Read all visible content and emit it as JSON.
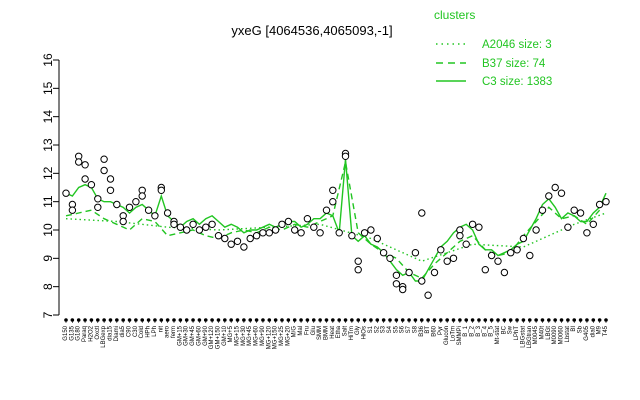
{
  "chart_data": {
    "type": "line",
    "title": "yxeG [4064536,4065093,-1]",
    "xlabel": "",
    "ylabel": "",
    "ylim": [
      7,
      16
    ],
    "yticks": [
      7,
      8,
      9,
      10,
      11,
      12,
      13,
      14,
      15,
      16
    ],
    "grid": false,
    "legend": {
      "title": "clusters",
      "placement": "top-right",
      "entries": [
        {
          "label": "A2046 size: 3",
          "style": "dotted"
        },
        {
          "label": "B37 size: 74",
          "style": "dashed"
        },
        {
          "label": "C3 size: 1383",
          "style": "solid"
        }
      ]
    },
    "colors": {
      "series": "#22c522",
      "points": "#000000",
      "point_fill": "#ffffff"
    },
    "x_tick_labels": [
      "G150",
      "G135",
      "G180",
      "Paraq",
      "H2O2",
      "Oxctl",
      "LBGexp",
      "dia15",
      "Diami",
      "dia5",
      "C90",
      "C30",
      "Cold",
      "HPh",
      "LPh",
      "nit",
      "aero",
      "ferm",
      "GM+15",
      "GM+30",
      "GM+45",
      "GM+60",
      "GM+90",
      "GM+120",
      "GM+150",
      "GM+10",
      "MG+5",
      "MG+15",
      "MG+30",
      "MG+45",
      "MG+60",
      "MG+90",
      "MG+120",
      "MG+150",
      "MG+25",
      "MG+20",
      "M/G",
      "Mal",
      "Fru",
      "Glu",
      "SMM",
      "BMM",
      "Heat",
      "Etha",
      "Salt",
      "HiTm",
      "Gly",
      "HiOs",
      "S1",
      "S2",
      "S3",
      "S4",
      "S5",
      "S6",
      "S7",
      "S8",
      "B36",
      "BT",
      "B60",
      "Pyr",
      "Glucon",
      "LoTm",
      "SMMPi",
      "B_1",
      "B_2",
      "B_3",
      "B_4",
      "B_5",
      "Mt-stat",
      "BC",
      "Sw",
      "LPhT",
      "LBGstat",
      "LBGtran",
      "M0045",
      "M40t",
      "LBGt",
      "M0090",
      "M0060",
      "Lbstat",
      "BI",
      "Sb",
      "G405",
      "dia0",
      "M9",
      "T45"
    ],
    "series": [
      {
        "name": "C3 size: 1383",
        "style": "solid",
        "x": [
          1,
          2,
          3,
          4,
          5,
          6,
          7,
          8,
          9,
          10,
          11,
          12,
          13,
          14,
          15,
          16,
          17,
          18,
          19,
          20,
          21,
          22,
          23,
          24,
          25,
          26,
          27,
          28,
          29,
          30,
          31,
          32,
          33,
          34,
          35,
          36,
          37,
          38,
          39,
          40,
          41,
          42,
          43,
          44,
          45,
          46,
          47,
          48,
          49,
          50,
          51,
          52,
          53,
          54,
          55,
          56,
          57,
          58,
          59,
          60,
          61,
          62,
          63,
          64,
          65,
          66,
          67,
          68,
          69,
          70,
          71,
          72,
          73,
          74,
          75,
          76,
          77,
          78,
          79,
          80,
          81,
          82,
          83,
          84,
          85,
          86
        ],
        "values": [
          11.3,
          11.2,
          11.5,
          11.6,
          11.5,
          11.1,
          11.0,
          11.0,
          10.9,
          10.8,
          10.6,
          10.8,
          10.9,
          10.7,
          10.5,
          11.2,
          10.5,
          10.3,
          10.1,
          10.3,
          10.4,
          10.2,
          10.4,
          10.5,
          10.3,
          10.1,
          10.2,
          10.1,
          9.9,
          10.0,
          10.0,
          10.1,
          10.2,
          10.1,
          10.2,
          10.3,
          10.3,
          10.1,
          10.2,
          10.4,
          10.4,
          10.6,
          10.5,
          9.9,
          12.5,
          9.8,
          9.6,
          9.8,
          9.5,
          9.4,
          9.2,
          8.9,
          8.6,
          8.4,
          8.5,
          8.2,
          8.2,
          8.6,
          9.0,
          9.4,
          9.6,
          9.9,
          10.1,
          10.2,
          10.0,
          9.5,
          9.3,
          9.3,
          9.1,
          9.2,
          9.3,
          9.5,
          9.6,
          10.0,
          10.4,
          10.9,
          11.1,
          10.8,
          10.4,
          10.6,
          10.5,
          10.3,
          10.3,
          10.6,
          10.8,
          11.3
        ]
      },
      {
        "name": "B37 size: 74",
        "style": "dashed",
        "x": [
          1,
          3,
          5,
          7,
          9,
          11,
          13,
          15,
          17,
          19,
          21,
          23,
          25,
          27,
          29,
          31,
          33,
          35,
          37,
          39,
          41,
          43,
          45,
          47,
          49,
          51,
          53,
          55,
          57,
          59,
          61,
          63,
          65,
          67,
          69,
          71,
          73,
          75,
          77,
          79,
          81,
          83,
          85
        ],
        "values": [
          10.5,
          10.6,
          10.7,
          10.4,
          10.2,
          10.0,
          10.4,
          10.3,
          9.8,
          9.9,
          10.0,
          9.8,
          9.7,
          9.9,
          10.0,
          9.9,
          10.1,
          10.0,
          10.2,
          10.1,
          10.3,
          10.5,
          12.4,
          9.9,
          9.5,
          9.2,
          9.0,
          8.5,
          8.3,
          8.8,
          9.2,
          9.6,
          9.8,
          9.3,
          9.1,
          9.2,
          9.8,
          10.3,
          10.8,
          10.4,
          10.5,
          10.2,
          10.7
        ]
      },
      {
        "name": "A2046 size: 3",
        "style": "dotted",
        "x": [
          1,
          9,
          17,
          25,
          33,
          41,
          49,
          57,
          65,
          73,
          81,
          86
        ],
        "values": [
          10.4,
          10.3,
          10.1,
          10.0,
          10.1,
          10.2,
          9.7,
          8.9,
          9.5,
          9.4,
          10.2,
          10.6
        ]
      }
    ],
    "points": [
      {
        "x": 1,
        "y": 11.3
      },
      {
        "x": 2,
        "y": 10.9
      },
      {
        "x": 2,
        "y": 10.7
      },
      {
        "x": 3,
        "y": 12.6
      },
      {
        "x": 3,
        "y": 12.4
      },
      {
        "x": 4,
        "y": 12.3
      },
      {
        "x": 4,
        "y": 11.8
      },
      {
        "x": 5,
        "y": 11.6
      },
      {
        "x": 6,
        "y": 11.1
      },
      {
        "x": 6,
        "y": 10.8
      },
      {
        "x": 7,
        "y": 12.5
      },
      {
        "x": 7,
        "y": 12.1
      },
      {
        "x": 8,
        "y": 11.8
      },
      {
        "x": 8,
        "y": 11.4
      },
      {
        "x": 9,
        "y": 10.9
      },
      {
        "x": 10,
        "y": 10.5
      },
      {
        "x": 10,
        "y": 10.3
      },
      {
        "x": 11,
        "y": 10.8
      },
      {
        "x": 12,
        "y": 11.0
      },
      {
        "x": 13,
        "y": 11.4
      },
      {
        "x": 13,
        "y": 11.2
      },
      {
        "x": 14,
        "y": 10.7
      },
      {
        "x": 15,
        "y": 10.5
      },
      {
        "x": 16,
        "y": 11.5
      },
      {
        "x": 16,
        "y": 11.4
      },
      {
        "x": 17,
        "y": 10.6
      },
      {
        "x": 18,
        "y": 10.3
      },
      {
        "x": 18,
        "y": 10.2
      },
      {
        "x": 19,
        "y": 10.1
      },
      {
        "x": 20,
        "y": 10.0
      },
      {
        "x": 21,
        "y": 10.2
      },
      {
        "x": 22,
        "y": 10.0
      },
      {
        "x": 23,
        "y": 10.1
      },
      {
        "x": 24,
        "y": 10.2
      },
      {
        "x": 25,
        "y": 9.8
      },
      {
        "x": 26,
        "y": 9.7
      },
      {
        "x": 27,
        "y": 9.5
      },
      {
        "x": 28,
        "y": 9.6
      },
      {
        "x": 29,
        "y": 9.4
      },
      {
        "x": 30,
        "y": 9.7
      },
      {
        "x": 31,
        "y": 9.8
      },
      {
        "x": 32,
        "y": 9.9
      },
      {
        "x": 33,
        "y": 9.9
      },
      {
        "x": 34,
        "y": 10.0
      },
      {
        "x": 35,
        "y": 10.2
      },
      {
        "x": 36,
        "y": 10.3
      },
      {
        "x": 37,
        "y": 10.0
      },
      {
        "x": 38,
        "y": 9.9
      },
      {
        "x": 39,
        "y": 10.4
      },
      {
        "x": 40,
        "y": 10.1
      },
      {
        "x": 41,
        "y": 9.9
      },
      {
        "x": 42,
        "y": 10.7
      },
      {
        "x": 43,
        "y": 11.0
      },
      {
        "x": 43,
        "y": 11.4
      },
      {
        "x": 44,
        "y": 9.9
      },
      {
        "x": 45,
        "y": 12.7
      },
      {
        "x": 45,
        "y": 12.6
      },
      {
        "x": 46,
        "y": 9.8
      },
      {
        "x": 47,
        "y": 8.9
      },
      {
        "x": 47,
        "y": 8.6
      },
      {
        "x": 48,
        "y": 9.9
      },
      {
        "x": 49,
        "y": 10.0
      },
      {
        "x": 50,
        "y": 9.7
      },
      {
        "x": 51,
        "y": 9.2
      },
      {
        "x": 52,
        "y": 9.0
      },
      {
        "x": 53,
        "y": 8.4
      },
      {
        "x": 53,
        "y": 8.1
      },
      {
        "x": 54,
        "y": 8.0
      },
      {
        "x": 54,
        "y": 7.9
      },
      {
        "x": 55,
        "y": 8.5
      },
      {
        "x": 56,
        "y": 9.2
      },
      {
        "x": 57,
        "y": 10.6
      },
      {
        "x": 57,
        "y": 8.2
      },
      {
        "x": 58,
        "y": 7.7
      },
      {
        "x": 59,
        "y": 8.5
      },
      {
        "x": 60,
        "y": 9.3
      },
      {
        "x": 61,
        "y": 8.9
      },
      {
        "x": 62,
        "y": 9.0
      },
      {
        "x": 63,
        "y": 10.0
      },
      {
        "x": 63,
        "y": 9.8
      },
      {
        "x": 64,
        "y": 9.5
      },
      {
        "x": 65,
        "y": 10.2
      },
      {
        "x": 66,
        "y": 10.1
      },
      {
        "x": 67,
        "y": 8.6
      },
      {
        "x": 68,
        "y": 9.1
      },
      {
        "x": 69,
        "y": 8.9
      },
      {
        "x": 70,
        "y": 8.5
      },
      {
        "x": 71,
        "y": 9.2
      },
      {
        "x": 72,
        "y": 9.3
      },
      {
        "x": 73,
        "y": 9.7
      },
      {
        "x": 74,
        "y": 9.1
      },
      {
        "x": 75,
        "y": 10.0
      },
      {
        "x": 76,
        "y": 10.7
      },
      {
        "x": 77,
        "y": 11.2
      },
      {
        "x": 78,
        "y": 11.5
      },
      {
        "x": 79,
        "y": 11.3
      },
      {
        "x": 80,
        "y": 10.1
      },
      {
        "x": 81,
        "y": 10.7
      },
      {
        "x": 82,
        "y": 10.6
      },
      {
        "x": 83,
        "y": 9.9
      },
      {
        "x": 84,
        "y": 10.2
      },
      {
        "x": 85,
        "y": 10.9
      },
      {
        "x": 86,
        "y": 11.0
      }
    ]
  }
}
